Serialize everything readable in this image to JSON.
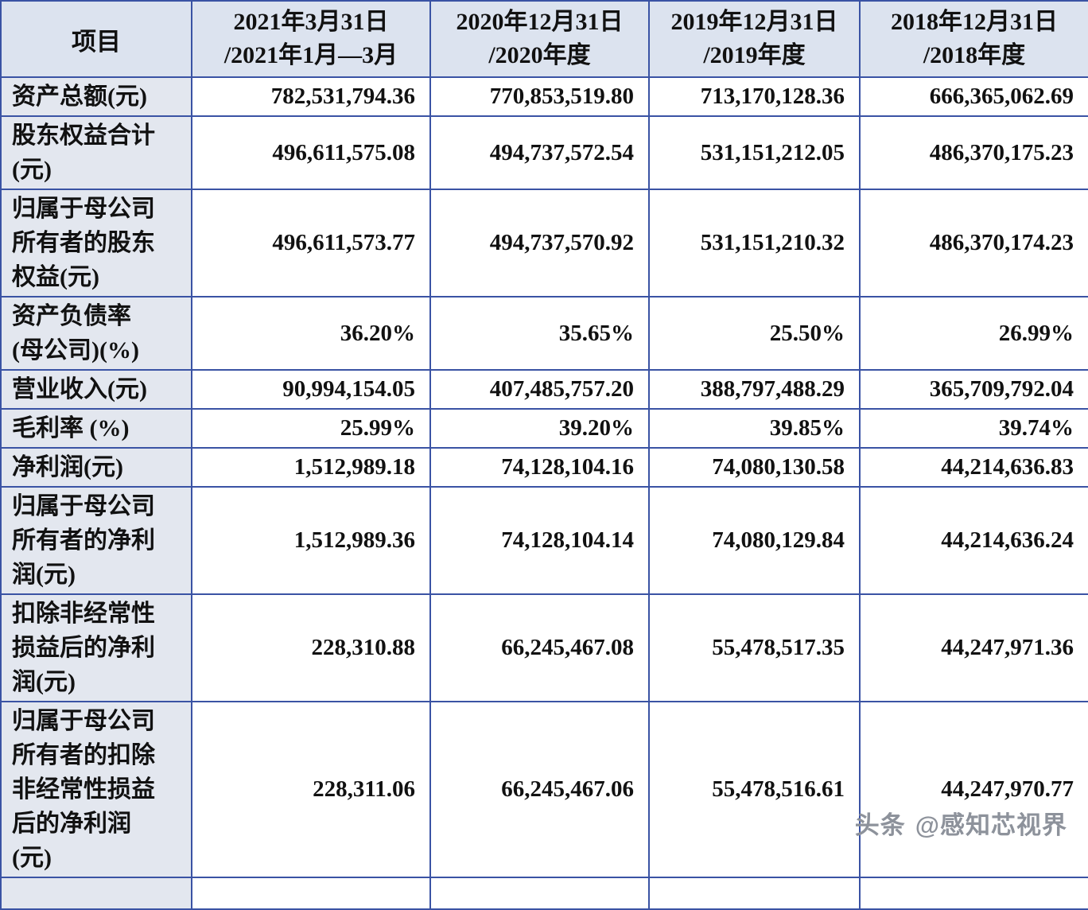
{
  "colors": {
    "border": "#3a53a4",
    "header_bg": "#dce3ef",
    "label_bg": "#e3e7ef",
    "watermark": "#8d929b"
  },
  "table": {
    "corner_header": "项目",
    "column_headers": [
      "2021年3月31日\n/2021年1月—3月",
      "2020年12月31日\n/2020年度",
      "2019年12月31日\n/2019年度",
      "2018年12月31日\n/2018年度"
    ],
    "rows": [
      {
        "label": "资产总额(元)",
        "values": [
          "782,531,794.36",
          "770,853,519.80",
          "713,170,128.36",
          "666,365,062.69"
        ]
      },
      {
        "label": "股东权益合计\n(元)",
        "values": [
          "496,611,575.08",
          "494,737,572.54",
          "531,151,212.05",
          "486,370,175.23"
        ]
      },
      {
        "label": "归属于母公司\n所有者的股东\n权益(元)",
        "values": [
          "496,611,573.77",
          "494,737,570.92",
          "531,151,210.32",
          "486,370,174.23"
        ]
      },
      {
        "label": "资产负债率\n(母公司)(%)",
        "values": [
          "36.20%",
          "35.65%",
          "25.50%",
          "26.99%"
        ]
      },
      {
        "label": "营业收入(元)",
        "values": [
          "90,994,154.05",
          "407,485,757.20",
          "388,797,488.29",
          "365,709,792.04"
        ]
      },
      {
        "label": "毛利率 (%)",
        "values": [
          "25.99%",
          "39.20%",
          "39.85%",
          "39.74%"
        ]
      },
      {
        "label": "净利润(元)",
        "values": [
          "1,512,989.18",
          "74,128,104.16",
          "74,080,130.58",
          "44,214,636.83"
        ]
      },
      {
        "label": "归属于母公司\n所有者的净利\n润(元)",
        "values": [
          "1,512,989.36",
          "74,128,104.14",
          "74,080,129.84",
          "44,214,636.24"
        ]
      },
      {
        "label": "扣除非经常性\n损益后的净利\n润(元)",
        "values": [
          "228,310.88",
          "66,245,467.08",
          "55,478,517.35",
          "44,247,971.36"
        ]
      },
      {
        "label": "归属于母公司\n所有者的扣除\n非经常性损益\n后的净利润\n(元)",
        "values": [
          "228,311.06",
          "66,245,467.06",
          "55,478,516.61",
          "44,247,970.77"
        ]
      }
    ]
  },
  "watermark": {
    "logo": "头条",
    "handle": "@感知芯视界"
  }
}
